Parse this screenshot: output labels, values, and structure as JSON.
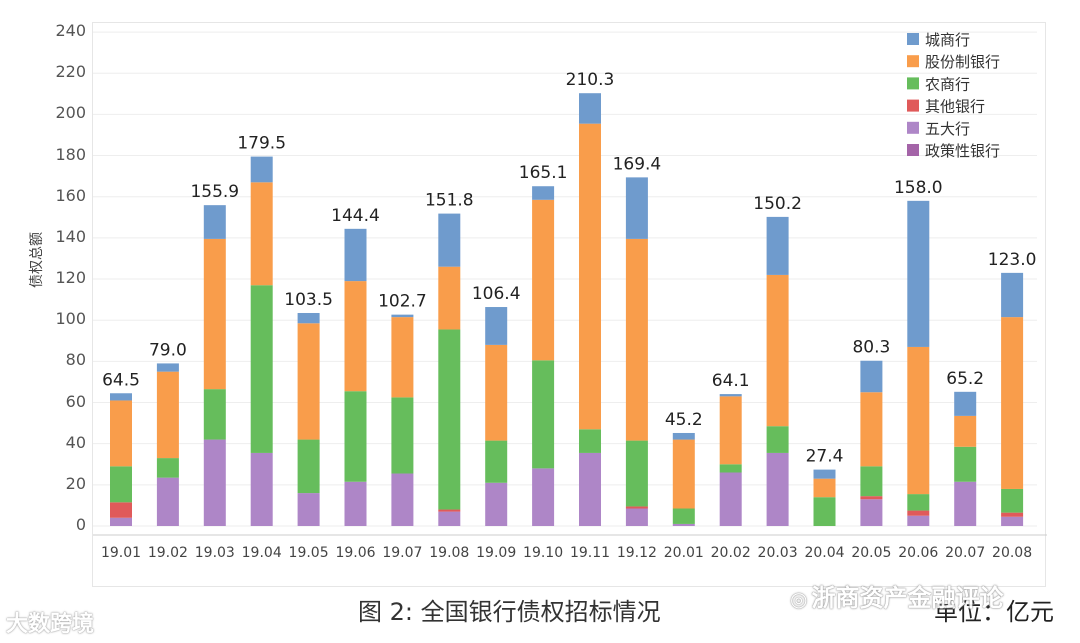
{
  "chart_data": {
    "type": "bar",
    "stacked": true,
    "title": "",
    "xlabel": "",
    "ylabel": "债权总额",
    "ylim": [
      0,
      245
    ],
    "yticks": [
      0,
      20,
      40,
      60,
      80,
      100,
      120,
      140,
      160,
      180,
      200,
      220,
      240
    ],
    "categories": [
      "19.01",
      "19.02",
      "19.03",
      "19.04",
      "19.05",
      "19.06",
      "19.07",
      "19.08",
      "19.09",
      "19.10",
      "19.11",
      "19.12",
      "20.01",
      "20.02",
      "20.03",
      "20.04",
      "20.05",
      "20.06",
      "20.07",
      "20.08"
    ],
    "totals": [
      "64.5",
      "79.0",
      "155.9",
      "179.5",
      "103.5",
      "144.4",
      "102.7",
      "151.8",
      "106.4",
      "165.1",
      "210.3",
      "169.4",
      "45.2",
      "64.1",
      "150.2",
      "27.4",
      "80.3",
      "158.0",
      "65.2",
      "123.0"
    ],
    "series": [
      {
        "name": "政策性银行",
        "color": "#a464a8",
        "values": [
          0,
          0,
          0,
          0,
          0,
          0,
          0,
          0,
          0,
          0,
          0,
          0,
          0,
          0,
          0,
          0,
          0,
          0,
          0,
          0
        ]
      },
      {
        "name": "五大行",
        "color": "#ae86c7",
        "values": [
          4,
          23.5,
          42,
          35.5,
          16,
          21.5,
          25.5,
          7,
          21,
          28,
          35.5,
          8.5,
          1,
          26,
          35.5,
          0,
          13,
          5,
          21.5,
          4.5
        ]
      },
      {
        "name": "其他银行",
        "color": "#e05a5a",
        "values": [
          7.5,
          0,
          0,
          0,
          0,
          0,
          0,
          1,
          0,
          0,
          0,
          1,
          0,
          0,
          0,
          0,
          1.5,
          2.5,
          0,
          2
        ]
      },
      {
        "name": "农商行",
        "color": "#66bd5c",
        "values": [
          17.5,
          9.5,
          24.5,
          81.5,
          26,
          44,
          37,
          87.5,
          20.5,
          52.5,
          11.5,
          32,
          7.5,
          4,
          13,
          14,
          14.5,
          8,
          17,
          11.5
        ]
      },
      {
        "name": "股份制银行",
        "color": "#f99d4b",
        "values": [
          32,
          42,
          73,
          50,
          56.5,
          53.5,
          39,
          30.5,
          46.5,
          78,
          148.5,
          98,
          33.5,
          33,
          73.5,
          9,
          36,
          71.5,
          15,
          83.5
        ]
      },
      {
        "name": "城商行",
        "color": "#6f9bcd",
        "values": [
          3.5,
          4,
          16.4,
          12.5,
          5,
          25.4,
          1.2,
          25.8,
          18.4,
          6.6,
          14.8,
          29.9,
          3.2,
          1.1,
          28.2,
          4.4,
          15.3,
          71,
          11.7,
          21.5
        ]
      }
    ],
    "legend_order": [
      "城商行",
      "股份制银行",
      "农商行",
      "其他银行",
      "五大行",
      "政策性银行"
    ],
    "legend_position": "top-right",
    "grid": true
  },
  "caption": "图 2:  全国银行债权招标情况",
  "unit": "单位：亿元",
  "watermark_left": "大数跨境",
  "watermark_right": "浙商资产金融评论"
}
